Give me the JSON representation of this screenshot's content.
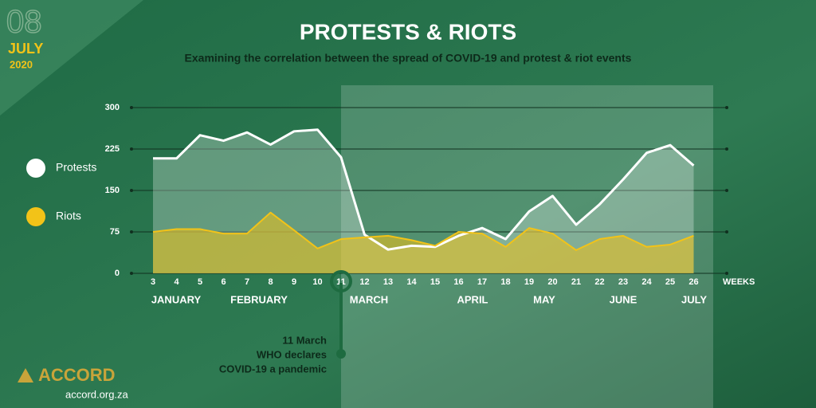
{
  "chart_data": {
    "type": "line",
    "date": {
      "day": "08",
      "month": "JULY",
      "year": "2020"
    },
    "title": "PROTESTS & RIOTS",
    "subtitle": "Examining the correlation between the spread of COVID-19 and protest & riot events",
    "x_label": "WEEKS",
    "categories": [
      "3",
      "4",
      "5",
      "6",
      "7",
      "8",
      "9",
      "10",
      "11",
      "12",
      "13",
      "14",
      "15",
      "16",
      "17",
      "18",
      "19",
      "20",
      "21",
      "22",
      "23",
      "24",
      "25",
      "26"
    ],
    "months": [
      "JANUARY",
      "FEBRUARY",
      "MARCH",
      "APRIL",
      "MAY",
      "JUNE",
      "JULY"
    ],
    "series": [
      {
        "name": "Protests",
        "color": "#ffffff",
        "values": [
          208,
          208,
          250,
          240,
          255,
          233,
          257,
          260,
          210,
          70,
          43,
          50,
          48,
          68,
          82,
          62,
          112,
          140,
          88,
          125,
          170,
          218,
          232,
          195
        ]
      },
      {
        "name": "Riots",
        "color": "#f2c318",
        "values": [
          75,
          80,
          80,
          72,
          72,
          110,
          78,
          45,
          62,
          65,
          68,
          60,
          50,
          75,
          72,
          48,
          82,
          72,
          42,
          62,
          68,
          48,
          52,
          68
        ]
      }
    ],
    "ylim": [
      0,
      300
    ],
    "yticks": [
      0,
      75,
      150,
      225,
      300
    ],
    "grid": true,
    "annotation": {
      "lines": [
        "11 March",
        "WHO declares",
        "COVID-19 a pandemic"
      ],
      "category_index": 8
    },
    "brand": {
      "name": "ACCORD",
      "url": "accord.org.za"
    }
  }
}
